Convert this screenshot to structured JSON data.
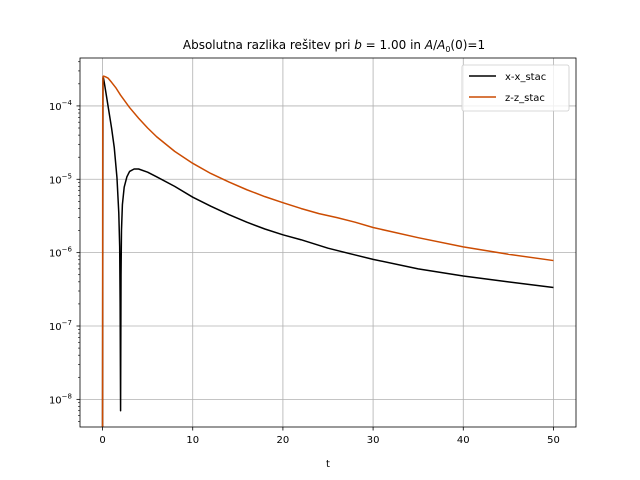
{
  "chart_data": {
    "type": "line",
    "title": "Absolutna razlika rešitev pri b = 1.00 in A/A₀(0)=1",
    "title_parts": {
      "prefix": "Absolutna razlika rešitev pri ",
      "b_symbol": "b",
      "b_value": " = 1.00 in ",
      "A_symbol": "A",
      "slash": "/",
      "A0_symbol": "A",
      "A0_sub": "0",
      "suffix": "(0)=1"
    },
    "xlabel": "t",
    "ylabel": "",
    "xlim": [
      -2.5,
      52.5
    ],
    "ylim": [
      4.2e-09,
      0.00045
    ],
    "yscale": "log",
    "grid": true,
    "legend": "top-right",
    "x_ticks": [
      0,
      10,
      20,
      30,
      40,
      50
    ],
    "x_tick_labels": [
      "0",
      "10",
      "20",
      "30",
      "40",
      "50"
    ],
    "y_ticks": [
      1e-08,
      1e-07,
      1e-06,
      1e-05,
      0.0001
    ],
    "y_tick_labels": [
      {
        "base": "10",
        "exp": "−8"
      },
      {
        "base": "10",
        "exp": "−7"
      },
      {
        "base": "10",
        "exp": "−6"
      },
      {
        "base": "10",
        "exp": "−5"
      },
      {
        "base": "10",
        "exp": "−4"
      }
    ],
    "series": [
      {
        "name": "x-x_stac",
        "color": "#000000",
        "x": [
          0,
          0.05,
          0.1,
          0.2,
          0.4,
          0.7,
          1.0,
          1.3,
          1.6,
          1.8,
          1.9,
          1.95,
          2.0,
          2.05,
          2.1,
          2.2,
          2.4,
          2.7,
          3.0,
          3.5,
          4.0,
          5,
          6,
          8,
          10,
          12,
          14,
          16,
          18,
          20,
          22,
          25,
          28,
          30,
          35,
          40,
          45,
          50
        ],
        "y": [
          4.2e-09,
          0.00024,
          0.00024,
          0.000205,
          0.000145,
          8.5e-05,
          5e-05,
          2.7e-05,
          1.05e-05,
          3.5e-06,
          1.2e-06,
          2e-07,
          7e-09,
          5e-07,
          2e-06,
          4.5e-06,
          7.8e-06,
          1.08e-05,
          1.28e-05,
          1.38e-05,
          1.38e-05,
          1.25e-05,
          1.08e-05,
          8e-06,
          5.7e-06,
          4.3e-06,
          3.3e-06,
          2.6e-06,
          2.1e-06,
          1.75e-06,
          1.5e-06,
          1.15e-06,
          9.3e-07,
          8.1e-07,
          6e-07,
          4.8e-07,
          4e-07,
          3.35e-07
        ]
      },
      {
        "name": "z-z_stac",
        "color": "#cc4c02",
        "x": [
          0,
          0.02,
          0.05,
          0.1,
          0.3,
          0.6,
          1.0,
          1.5,
          2,
          3,
          4,
          5,
          6,
          8,
          10,
          12,
          14,
          16,
          18,
          20,
          22,
          24,
          26,
          28,
          30,
          35,
          40,
          45,
          50
        ],
        "y": [
          4.2e-09,
          0.0001,
          0.00025,
          0.000255,
          0.00025,
          0.00024,
          0.00021,
          0.000175,
          0.00014,
          9.5e-05,
          6.8e-05,
          5e-05,
          3.8e-05,
          2.4e-05,
          1.65e-05,
          1.2e-05,
          9.2e-06,
          7.2e-06,
          5.8e-06,
          4.8e-06,
          4e-06,
          3.4e-06,
          3e-06,
          2.6e-06,
          2.2e-06,
          1.6e-06,
          1.2e-06,
          9.5e-07,
          7.8e-07
        ]
      }
    ]
  }
}
